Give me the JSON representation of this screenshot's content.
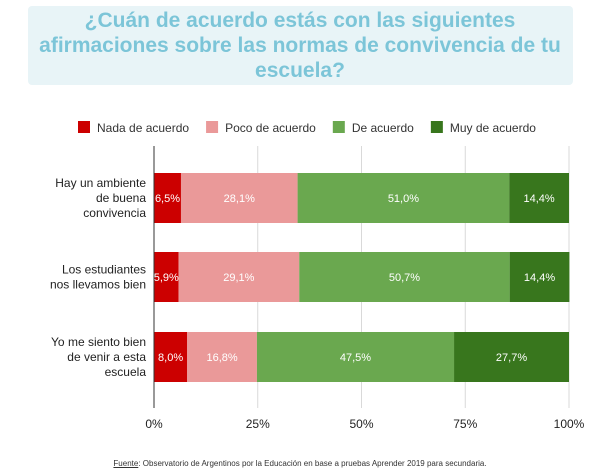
{
  "chart_data": {
    "type": "bar",
    "orientation": "horizontal",
    "stacked": true,
    "title": "¿Cuán de acuerdo estás con las siguientes afirmaciones sobre las normas de convivencia de tu escuela?",
    "categories": [
      "Hay un ambiente de buena convivencia",
      "Los estudiantes nos llevamos bien",
      "Yo me siento bien de venir a esta escuela"
    ],
    "category_lines": [
      [
        "Hay un ambiente",
        "de buena",
        "convivencia"
      ],
      [
        "Los estudiantes",
        "nos llevamos bien"
      ],
      [
        "Yo me siento bien",
        "de venir a esta",
        "escuela"
      ]
    ],
    "series": [
      {
        "name": "Nada de acuerdo",
        "color": "#cc0000",
        "values": [
          6.5,
          5.9,
          8.0
        ],
        "labels": [
          "6,5%",
          "5,9%",
          "8,0%"
        ]
      },
      {
        "name": "Poco de acuerdo",
        "color": "#ea9999",
        "values": [
          28.1,
          29.1,
          16.8
        ],
        "labels": [
          "28,1%",
          "29,1%",
          "16,8%"
        ]
      },
      {
        "name": "De acuerdo",
        "color": "#6aa84f",
        "values": [
          51.0,
          50.7,
          47.5
        ],
        "labels": [
          "51,0%",
          "50,7%",
          "47,5%"
        ]
      },
      {
        "name": "Muy de acuerdo",
        "color": "#38761d",
        "values": [
          14.4,
          14.4,
          27.7
        ],
        "labels": [
          "14,4%",
          "14,4%",
          "27,7%"
        ]
      }
    ],
    "xlim": [
      0,
      100
    ],
    "x_ticks": [
      0,
      25,
      50,
      75,
      100
    ],
    "x_tick_labels": [
      "0%",
      "25%",
      "50%",
      "75%",
      "100%"
    ],
    "grid": true,
    "legend_position": "top"
  },
  "source": {
    "label": "Fuente",
    "text": ": Observatorio de Argentinos por la Educación en base a pruebas Aprender 2019 para secundaria."
  }
}
